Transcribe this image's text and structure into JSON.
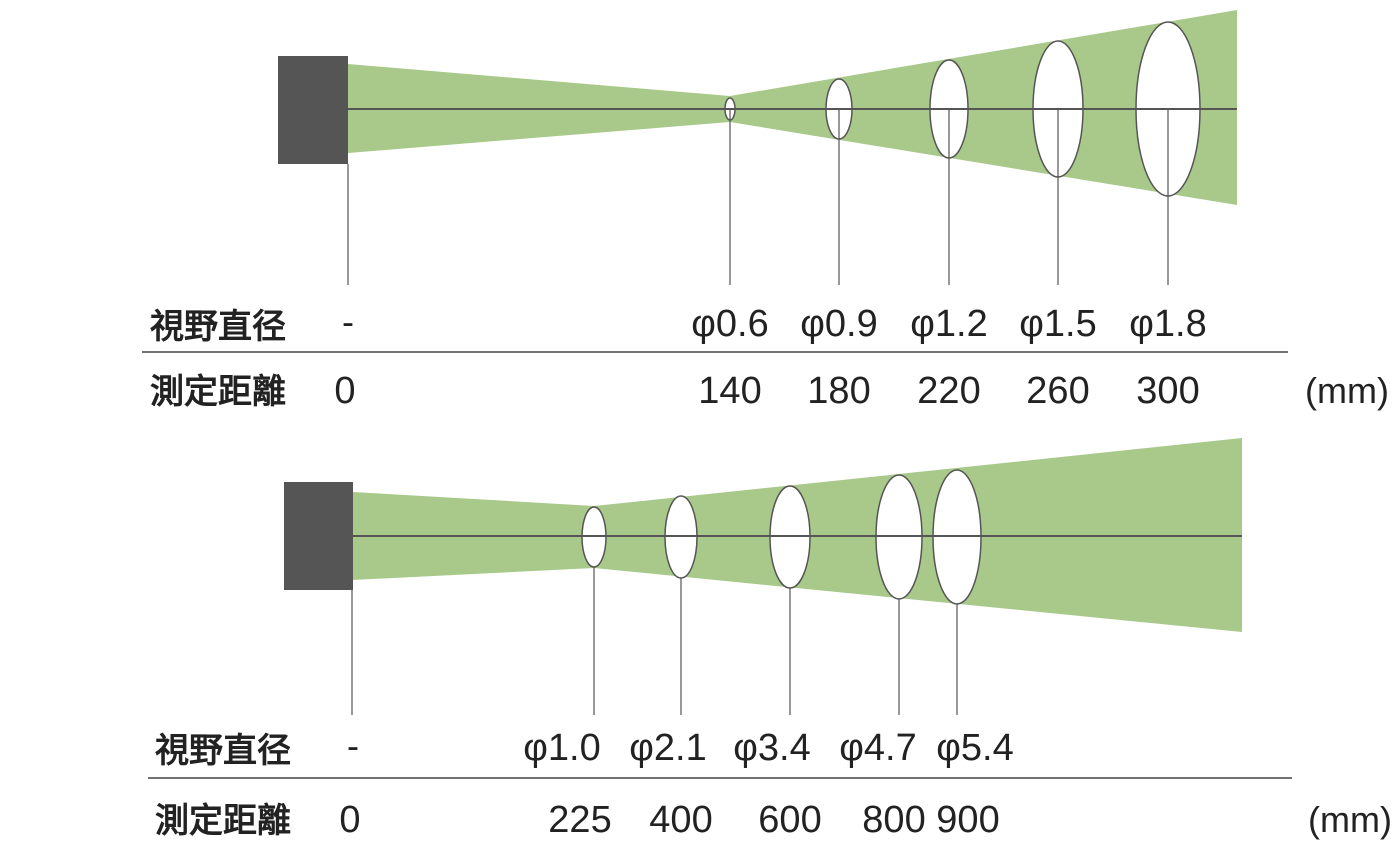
{
  "colors": {
    "beam": "#a8c98a",
    "sensor": "#555555",
    "line": "#555555",
    "spot_fill": "#ffffff",
    "text": "#222222"
  },
  "diagrams": [
    {
      "spot_label": "視野直径",
      "distance_label": "測定距離",
      "origin_spot": "-",
      "origin_distance": "0",
      "unit": "(mm)",
      "spots": [
        {
          "diameter": "φ0.6",
          "distance": "140",
          "distance_mm": 140,
          "diameter_mm": 0.6
        },
        {
          "diameter": "φ0.9",
          "distance": "180",
          "distance_mm": 180,
          "diameter_mm": 0.9
        },
        {
          "diameter": "φ1.2",
          "distance": "220",
          "distance_mm": 220,
          "diameter_mm": 1.2
        },
        {
          "diameter": "φ1.5",
          "distance": "260",
          "distance_mm": 260,
          "diameter_mm": 1.5
        },
        {
          "diameter": "φ1.8",
          "distance": "300",
          "distance_mm": 300,
          "diameter_mm": 1.8
        }
      ]
    },
    {
      "spot_label": "視野直径",
      "distance_label": "測定距離",
      "origin_spot": "-",
      "origin_distance": "0",
      "unit": "(mm)",
      "spots": [
        {
          "diameter": "φ1.0",
          "distance": "225",
          "distance_mm": 225,
          "diameter_mm": 1.0
        },
        {
          "diameter": "φ2.1",
          "distance": "400",
          "distance_mm": 400,
          "diameter_mm": 2.1
        },
        {
          "diameter": "φ3.4",
          "distance": "600",
          "distance_mm": 600,
          "diameter_mm": 3.4
        },
        {
          "diameter": "φ4.7",
          "distance": "800",
          "distance_mm": 800,
          "diameter_mm": 4.7
        },
        {
          "diameter": "φ5.4",
          "distance": "900",
          "distance_mm": 900,
          "diameter_mm": 5.4
        }
      ]
    }
  ]
}
